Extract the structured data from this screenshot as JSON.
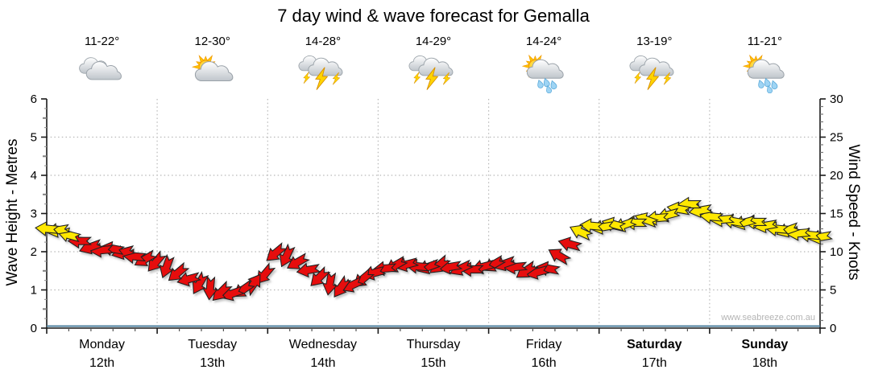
{
  "title": "7 day wind & wave forecast for Gemalla",
  "watermark": "www.seabreeze.com.au",
  "days": [
    {
      "name": "Monday",
      "date": "12th",
      "temp_range": "11-22°",
      "icon": "cloudy",
      "weekend": false
    },
    {
      "name": "Tuesday",
      "date": "13th",
      "temp_range": "12-30°",
      "icon": "partly-cloudy",
      "weekend": false
    },
    {
      "name": "Wednesday",
      "date": "14th",
      "temp_range": "14-28°",
      "icon": "thunderstorm",
      "weekend": false
    },
    {
      "name": "Thursday",
      "date": "15th",
      "temp_range": "14-29°",
      "icon": "thunderstorm",
      "weekend": false
    },
    {
      "name": "Friday",
      "date": "16th",
      "temp_range": "14-24°",
      "icon": "sun-shower",
      "weekend": false
    },
    {
      "name": "Saturday",
      "date": "17th",
      "temp_range": "13-19°",
      "icon": "thunderstorm",
      "weekend": true
    },
    {
      "name": "Sunday",
      "date": "18th",
      "temp_range": "11-21°",
      "icon": "sun-shower",
      "weekend": true
    }
  ],
  "axes": {
    "left_label": "Wave Height - Metres",
    "left_ticks": [
      "0",
      "1",
      "2",
      "3",
      "4",
      "5",
      "6"
    ],
    "left_range": [
      0,
      6
    ],
    "right_label": "Wind Speed - Knots",
    "right_ticks": [
      "0",
      "5",
      "10",
      "15",
      "20",
      "25",
      "30"
    ],
    "right_range": [
      0,
      30
    ],
    "grid": true
  },
  "colors": {
    "arrow_yellow": "#ffe800",
    "arrow_red": "#e60d0d",
    "arrow_outline": "#222222",
    "wave_line": "#4d7f9e",
    "grid_line": "#b8b8b8",
    "axis_line": "#1a1a1a",
    "date_text": "#999999",
    "watermark_text": "#b4b4b4"
  },
  "chart_data": {
    "type": "scatter",
    "marker": "wind-arrow",
    "title": "7 day wind & wave forecast for Gemalla",
    "x_categories": [
      "Monday 12th",
      "Tuesday 13th",
      "Wednesday 14th",
      "Thursday 15th",
      "Friday 16th",
      "Saturday 17th",
      "Sunday 18th"
    ],
    "xlabel": "",
    "ylabel_left": "Wave Height - Metres",
    "ylabel_right": "Wind Speed - Knots",
    "ylim_left": [
      0,
      6
    ],
    "ylim_right": [
      0,
      30
    ],
    "legend": "none",
    "grid": "dotted, 1m / 5kt horizontal, day-boundary vertical",
    "series": [
      {
        "name": "Wind Speed",
        "unit": "knots",
        "axis": "right",
        "note": "72 evenly spaced 3-hourly points across 7 days; each point = [knots, direction_deg(0=E, CW screen), color y|r]",
        "points": [
          [
            13.0,
            185,
            "y"
          ],
          [
            12.8,
            170,
            "y"
          ],
          [
            12.2,
            195,
            "y"
          ],
          [
            11.4,
            180,
            "r"
          ],
          [
            10.6,
            160,
            "r"
          ],
          [
            10.2,
            175,
            "r"
          ],
          [
            10.4,
            190,
            "r"
          ],
          [
            9.9,
            165,
            "r"
          ],
          [
            9.4,
            185,
            "r"
          ],
          [
            9.0,
            150,
            "r"
          ],
          [
            8.6,
            130,
            "r"
          ],
          [
            8.0,
            110,
            "r"
          ],
          [
            7.2,
            140,
            "r"
          ],
          [
            6.4,
            165,
            "r"
          ],
          [
            5.8,
            120,
            "r"
          ],
          [
            5.2,
            95,
            "r"
          ],
          [
            4.7,
            135,
            "r"
          ],
          [
            4.5,
            160,
            "r"
          ],
          [
            5.0,
            145,
            "r"
          ],
          [
            5.8,
            305,
            "r"
          ],
          [
            7.0,
            130,
            "r"
          ],
          [
            9.8,
            140,
            "r"
          ],
          [
            9.4,
            115,
            "r"
          ],
          [
            8.6,
            150,
            "r"
          ],
          [
            7.6,
            170,
            "r"
          ],
          [
            6.6,
            135,
            "r"
          ],
          [
            5.8,
            100,
            "r"
          ],
          [
            5.3,
            125,
            "r"
          ],
          [
            5.6,
            155,
            "r"
          ],
          [
            6.4,
            140,
            "r"
          ],
          [
            7.2,
            165,
            "r"
          ],
          [
            7.8,
            175,
            "r"
          ],
          [
            8.2,
            150,
            "r"
          ],
          [
            8.3,
            165,
            "r"
          ],
          [
            8.1,
            185,
            "r"
          ],
          [
            8.0,
            160,
            "r"
          ],
          [
            8.2,
            140,
            "r"
          ],
          [
            8.0,
            170,
            "r"
          ],
          [
            7.8,
            155,
            "r"
          ],
          [
            7.7,
            180,
            "r"
          ],
          [
            8.0,
            165,
            "r"
          ],
          [
            8.3,
            150,
            "r"
          ],
          [
            8.4,
            160,
            "r"
          ],
          [
            8.0,
            175,
            "r"
          ],
          [
            7.5,
            145,
            "r"
          ],
          [
            7.3,
            165,
            "r"
          ],
          [
            7.8,
            190,
            "r"
          ],
          [
            9.5,
            210,
            "r"
          ],
          [
            11.0,
            195,
            "r"
          ],
          [
            12.6,
            205,
            "y"
          ],
          [
            13.4,
            185,
            "y"
          ],
          [
            13.2,
            170,
            "y"
          ],
          [
            13.6,
            195,
            "y"
          ],
          [
            13.5,
            160,
            "y"
          ],
          [
            13.8,
            180,
            "y"
          ],
          [
            14.2,
            200,
            "y"
          ],
          [
            14.4,
            175,
            "y"
          ],
          [
            14.8,
            165,
            "y"
          ],
          [
            15.6,
            190,
            "y"
          ],
          [
            16.2,
            180,
            "y"
          ],
          [
            15.4,
            170,
            "y"
          ],
          [
            14.6,
            185,
            "y"
          ],
          [
            14.2,
            175,
            "y"
          ],
          [
            14.0,
            190,
            "y"
          ],
          [
            13.8,
            165,
            "y"
          ],
          [
            13.9,
            180,
            "y"
          ],
          [
            13.4,
            170,
            "y"
          ],
          [
            13.0,
            185,
            "y"
          ],
          [
            12.8,
            160,
            "y"
          ],
          [
            12.4,
            175,
            "y"
          ],
          [
            12.2,
            185,
            "y"
          ],
          [
            11.9,
            170,
            "y"
          ]
        ]
      },
      {
        "name": "Wave Height",
        "unit": "metres",
        "axis": "left",
        "constant_value": 0
      }
    ]
  }
}
